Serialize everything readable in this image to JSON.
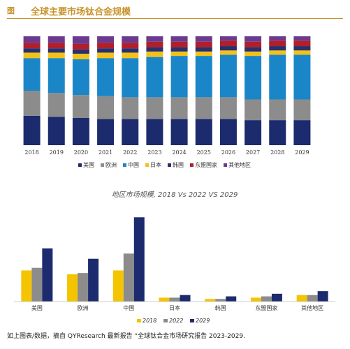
{
  "header": {
    "figure_label": "图",
    "title": "全球主要市场钛合金规模"
  },
  "colors": {
    "美国": "#1c2a6e",
    "欧洲": "#8c8c8c",
    "中国": "#1a86c8",
    "日本": "#f2c21a",
    "韩国": "#2b2f6b",
    "东盟国家": "#b01f2a",
    "其他地区": "#6b3a8e",
    "y2018": "#f5c400",
    "y2022": "#8c8c8c",
    "y2029": "#1c2a6e"
  },
  "chart_data": [
    {
      "type": "bar",
      "stacked": true,
      "percent": true,
      "categories": [
        "2018",
        "2019",
        "2020",
        "2021",
        "2022",
        "2023",
        "2024",
        "2025",
        "2026",
        "2027",
        "2028",
        "2029"
      ],
      "series": [
        {
          "name": "美国",
          "values": [
            27,
            26,
            25,
            24,
            24,
            24,
            24,
            24,
            24,
            23,
            23,
            23
          ]
        },
        {
          "name": "欧洲",
          "values": [
            23,
            22,
            21,
            21,
            20,
            20,
            20,
            20,
            20,
            19,
            19,
            19
          ]
        },
        {
          "name": "中国",
          "values": [
            30,
            32,
            33,
            35,
            36,
            37,
            38,
            38,
            39,
            40,
            41,
            41
          ]
        },
        {
          "name": "日本",
          "values": [
            5,
            5,
            5,
            5,
            5,
            5,
            4,
            4,
            4,
            4,
            4,
            4
          ]
        },
        {
          "name": "韩国",
          "values": [
            4,
            4,
            4,
            4,
            4,
            4,
            4,
            4,
            4,
            4,
            4,
            4
          ]
        },
        {
          "name": "东盟国家",
          "values": [
            5,
            5,
            5,
            5,
            5,
            5,
            5,
            5,
            5,
            5,
            5,
            5
          ]
        },
        {
          "name": "其他地区",
          "values": [
            6,
            6,
            7,
            6,
            6,
            5,
            5,
            5,
            4,
            5,
            4,
            4
          ]
        }
      ],
      "legend": {
        "position": "bottom",
        "entries": [
          "美国",
          "欧洲",
          "中国",
          "日本",
          "韩国",
          "东盟国家",
          "其他地区"
        ]
      },
      "grid": false
    },
    {
      "type": "bar",
      "title": "地区市场规模, 2018 Vs 2022 VS 2029",
      "categories": [
        "美国",
        "欧洲",
        "中国",
        "日本",
        "韩国",
        "东盟国家",
        "其他地区"
      ],
      "series": [
        {
          "name": "2018",
          "values": [
            24,
            21,
            24,
            3,
            2,
            3,
            5
          ]
        },
        {
          "name": "2022",
          "values": [
            26,
            22,
            37,
            3,
            2,
            4,
            5
          ]
        },
        {
          "name": "2029",
          "values": [
            41,
            33,
            65,
            5,
            4,
            6,
            8
          ]
        }
      ],
      "ylim": [
        0,
        70
      ],
      "legend": {
        "position": "bottom",
        "entries": [
          "2018",
          "2022",
          "2029"
        ]
      },
      "grid": false
    }
  ],
  "footer": {
    "source": "如上图表/数据，摘自 QYResearch 最新报告 “全球钛合金市场研究报告 2023-2029."
  }
}
